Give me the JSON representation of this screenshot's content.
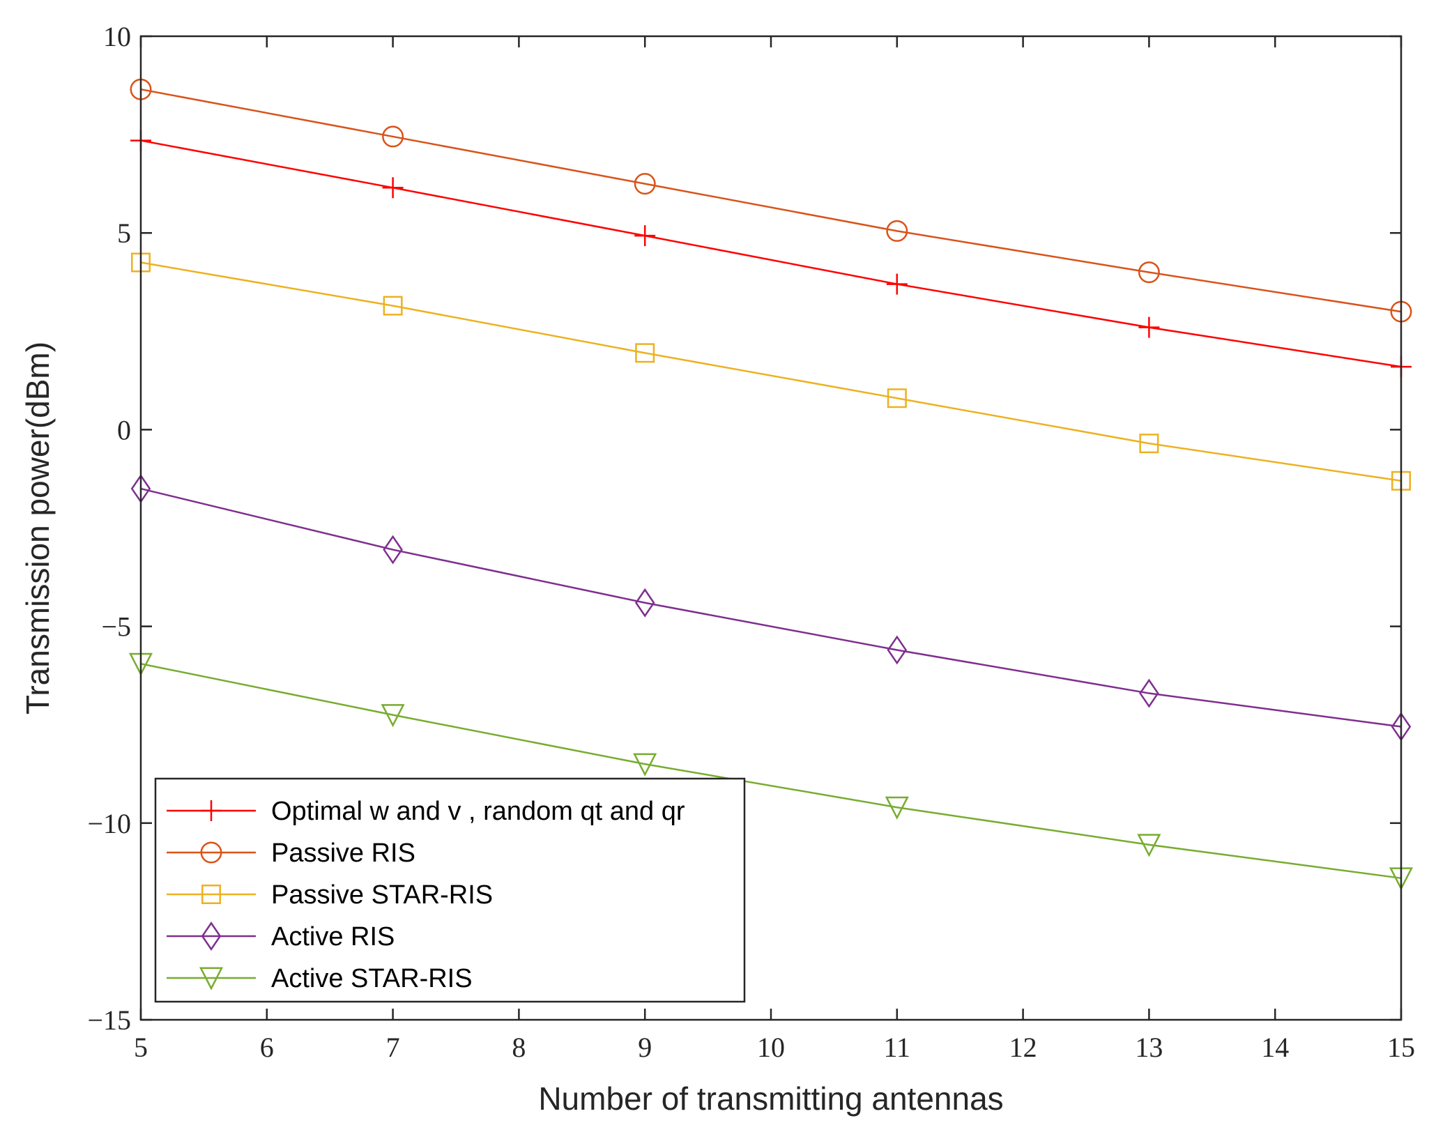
{
  "chart_data": {
    "type": "line",
    "title": "",
    "xlabel": "Number of transmitting antennas",
    "ylabel": "Transmission power(dBm)",
    "xlim": [
      5,
      15
    ],
    "ylim": [
      -15,
      10
    ],
    "xticks": [
      5,
      6,
      7,
      8,
      9,
      10,
      11,
      12,
      13,
      14,
      15
    ],
    "yticks": [
      -15,
      -10,
      -5,
      0,
      5,
      10
    ],
    "ytick_labels": [
      "−15",
      "−10",
      "−5",
      "0",
      "5",
      "10"
    ],
    "x": [
      5,
      7,
      9,
      11,
      13,
      15
    ],
    "legend_position": "bottom-left",
    "series": [
      {
        "name": "Optimal w and v , random qt and qr",
        "marker": "plus",
        "color": "#ff0000",
        "values": [
          7.35,
          6.15,
          4.93,
          3.7,
          2.6,
          1.6
        ]
      },
      {
        "name": "Passive RIS",
        "marker": "circle",
        "color": "#d95319",
        "values": [
          8.65,
          7.45,
          6.25,
          5.05,
          4.0,
          3.0
        ]
      },
      {
        "name": "Passive STAR-RIS",
        "marker": "square",
        "color": "#edb120",
        "values": [
          4.25,
          3.15,
          1.95,
          0.8,
          -0.35,
          -1.3
        ]
      },
      {
        "name": "Active RIS",
        "marker": "diamond",
        "color": "#7e2f8e",
        "values": [
          -1.5,
          -3.05,
          -4.4,
          -5.6,
          -6.7,
          -7.55
        ]
      },
      {
        "name": "Active STAR-RIS",
        "marker": "triangle-down",
        "color": "#77ac30",
        "values": [
          -5.95,
          -7.25,
          -8.5,
          -9.6,
          -10.55,
          -11.4
        ]
      }
    ]
  }
}
